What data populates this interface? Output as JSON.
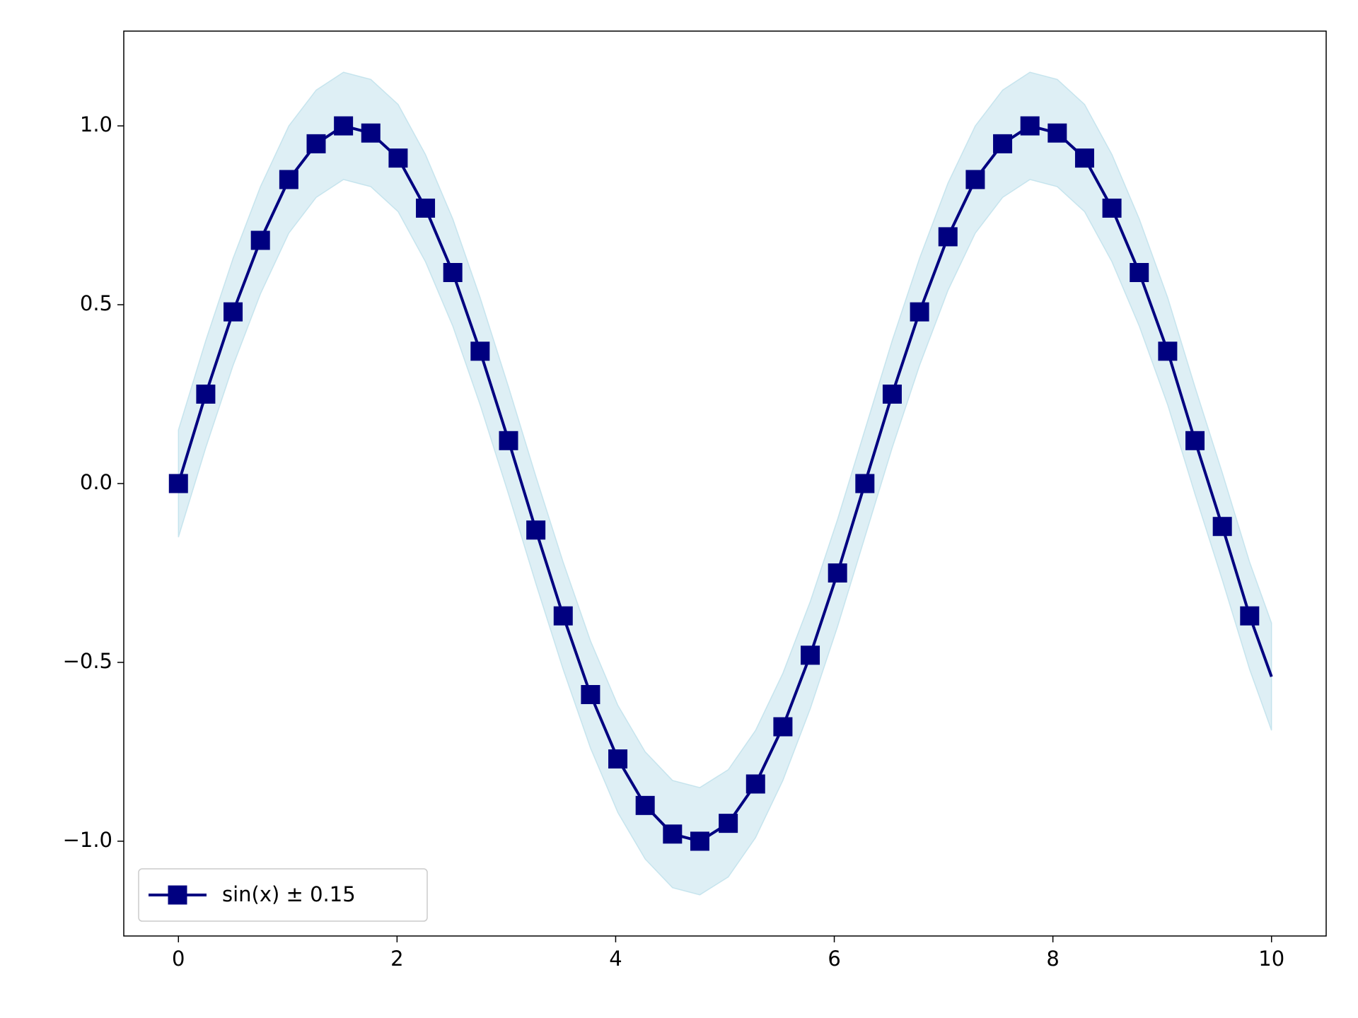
{
  "chart_data": {
    "type": "line",
    "xlim": [
      -0.5,
      10.5
    ],
    "xticks": [
      0,
      2,
      4,
      6,
      8,
      10
    ],
    "ylim": [
      -1.265,
      1.265
    ],
    "yticks": [
      {
        "value": -1.0,
        "label": "−1.0"
      },
      {
        "value": -0.5,
        "label": "−0.5"
      },
      {
        "value": 0.0,
        "label": "0.0"
      },
      0.5,
      {
        "value": 1.0,
        "label": "1.0"
      }
    ],
    "legend": "lower left",
    "series": [
      {
        "name": "sin(x) ± 0.15",
        "color": "#000080",
        "band_color": "#add8e6",
        "error": 0.15,
        "x": [
          0,
          0.25,
          0.5,
          0.75,
          1.01,
          1.26,
          1.51,
          1.76,
          2.01,
          2.26,
          2.51,
          2.76,
          3.02,
          3.27,
          3.52,
          3.77,
          4.02,
          4.27,
          4.52,
          4.77,
          5.03,
          5.28,
          5.53,
          5.78,
          6.03,
          6.28,
          6.53,
          6.78,
          7.04,
          7.29,
          7.54,
          7.79,
          8.04,
          8.29,
          8.54,
          8.79,
          9.05,
          9.3,
          9.55,
          9.8,
          10
        ],
        "values": [
          0,
          0.25,
          0.48,
          0.68,
          0.85,
          0.95,
          1.0,
          0.98,
          0.91,
          0.77,
          0.59,
          0.37,
          0.12,
          -0.13,
          -0.37,
          -0.59,
          -0.77,
          -0.9,
          -0.98,
          -1.0,
          -0.95,
          -0.84,
          -0.68,
          -0.48,
          -0.25,
          0.0,
          0.25,
          0.48,
          0.69,
          0.85,
          0.95,
          1.0,
          0.98,
          0.91,
          0.77,
          0.59,
          0.37,
          0.12,
          -0.12,
          -0.37,
          -0.54
        ],
        "markers": {
          "shape": "square",
          "x": [
            0,
            0.25,
            0.5,
            0.75,
            1.01,
            1.26,
            1.51,
            1.76,
            2.01,
            2.26,
            2.51,
            2.76,
            3.02,
            3.27,
            3.52,
            3.77,
            4.02,
            4.27,
            4.52,
            4.77,
            5.03,
            5.28,
            5.53,
            5.78,
            6.03,
            6.28,
            6.53,
            6.78,
            7.04,
            7.29,
            7.54,
            7.79,
            8.04,
            8.29,
            8.54,
            8.79,
            9.05,
            9.3,
            9.55,
            9.8
          ],
          "values": [
            0,
            0.25,
            0.48,
            0.68,
            0.85,
            0.95,
            1.0,
            0.98,
            0.91,
            0.77,
            0.59,
            0.37,
            0.12,
            -0.13,
            -0.37,
            -0.59,
            -0.77,
            -0.9,
            -0.98,
            -1.0,
            -0.95,
            -0.84,
            -0.68,
            -0.48,
            -0.25,
            0.0,
            0.25,
            0.48,
            0.69,
            0.85,
            0.95,
            1.0,
            0.98,
            0.91,
            0.77,
            0.59,
            0.37,
            0.12,
            -0.12,
            -0.37
          ]
        }
      }
    ]
  }
}
